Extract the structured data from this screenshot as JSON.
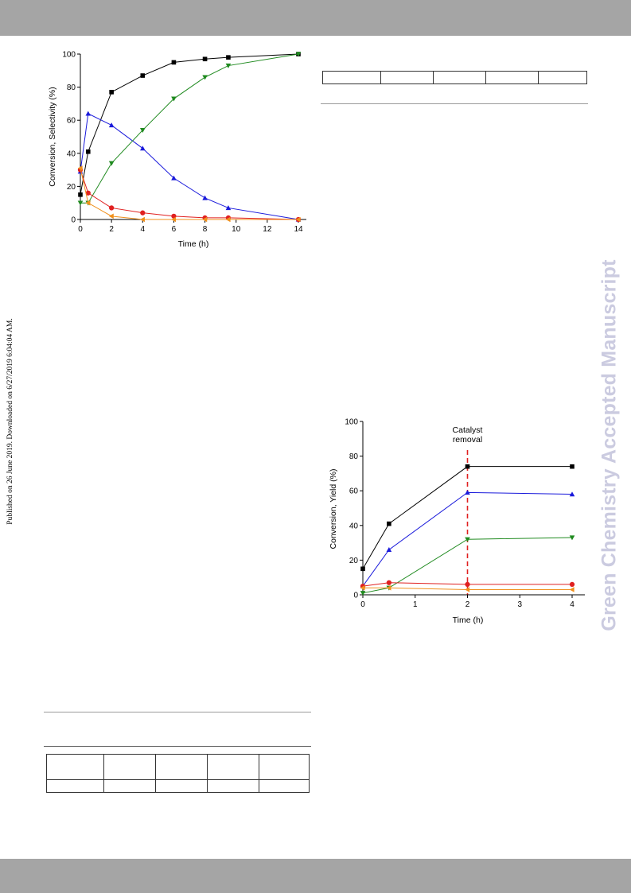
{
  "page": {
    "watermark": "Green Chemistry Accepted Manuscript",
    "published_note": "Published on 26 June 2019. Downloaded on 6/27/2019 6:04:04 AM."
  },
  "chart_data": [
    {
      "type": "line",
      "xlabel": "Time (h)",
      "ylabel": "Conversion, Selectivity (%)",
      "xlim": [
        0,
        14
      ],
      "ylim": [
        0,
        100
      ],
      "xticks": [
        0,
        2,
        4,
        6,
        8,
        10,
        12,
        14
      ],
      "yticks": [
        0,
        20,
        40,
        60,
        80,
        100
      ],
      "grid": false,
      "series": [
        {
          "marker": "square",
          "color": "#000000",
          "x": [
            0,
            0.5,
            2,
            4,
            6,
            8,
            9.5,
            14
          ],
          "y": [
            15,
            41,
            77,
            87,
            95,
            97,
            98,
            100
          ]
        },
        {
          "marker": "triangle-up",
          "color": "#1a1adb",
          "x": [
            0,
            0.5,
            2,
            4,
            6,
            8,
            9.5,
            14
          ],
          "y": [
            29,
            64,
            57,
            43,
            25,
            13,
            7,
            0
          ]
        },
        {
          "marker": "triangle-down",
          "color": "#1f8a1f",
          "x": [
            0,
            0.5,
            2,
            4,
            6,
            8,
            9.5,
            14
          ],
          "y": [
            10,
            10,
            34,
            54,
            73,
            86,
            93,
            100
          ]
        },
        {
          "marker": "circle",
          "color": "#e02020",
          "x": [
            0,
            0.5,
            2,
            4,
            6,
            8,
            9.5,
            14
          ],
          "y": [
            30,
            16,
            7,
            4,
            2,
            1,
            1,
            0
          ]
        },
        {
          "marker": "triangle-left",
          "color": "#f0901c",
          "x": [
            0,
            0.5,
            2,
            4,
            6,
            8,
            9.5,
            14
          ],
          "y": [
            31,
            10,
            2,
            0,
            0,
            0,
            0,
            0
          ]
        }
      ]
    },
    {
      "type": "line",
      "xlabel": "Time (h)",
      "ylabel": "Conversion, Yield (%)",
      "xlim": [
        0,
        4
      ],
      "ylim": [
        0,
        100
      ],
      "xticks": [
        0,
        1,
        2,
        3,
        4
      ],
      "yticks": [
        0,
        20,
        40,
        60,
        80,
        100
      ],
      "grid": false,
      "annotation": {
        "text_lines": [
          "Catalyst",
          "removal"
        ],
        "x": 2
      },
      "series": [
        {
          "marker": "square",
          "color": "#000000",
          "x": [
            0,
            0.5,
            2,
            4
          ],
          "y": [
            15,
            41,
            74,
            74
          ]
        },
        {
          "marker": "triangle-up",
          "color": "#1a1adb",
          "x": [
            0,
            0.5,
            2,
            4
          ],
          "y": [
            5,
            26,
            59,
            58
          ]
        },
        {
          "marker": "triangle-down",
          "color": "#1f8a1f",
          "x": [
            0,
            0.5,
            2,
            4
          ],
          "y": [
            1,
            4,
            32,
            33
          ]
        },
        {
          "marker": "circle",
          "color": "#e02020",
          "x": [
            0,
            0.5,
            2,
            4
          ],
          "y": [
            5,
            7,
            6,
            6
          ]
        },
        {
          "marker": "triangle-left",
          "color": "#f0901c",
          "x": [
            0,
            0.5,
            2,
            4
          ],
          "y": [
            4,
            4,
            3,
            3
          ]
        }
      ]
    }
  ]
}
